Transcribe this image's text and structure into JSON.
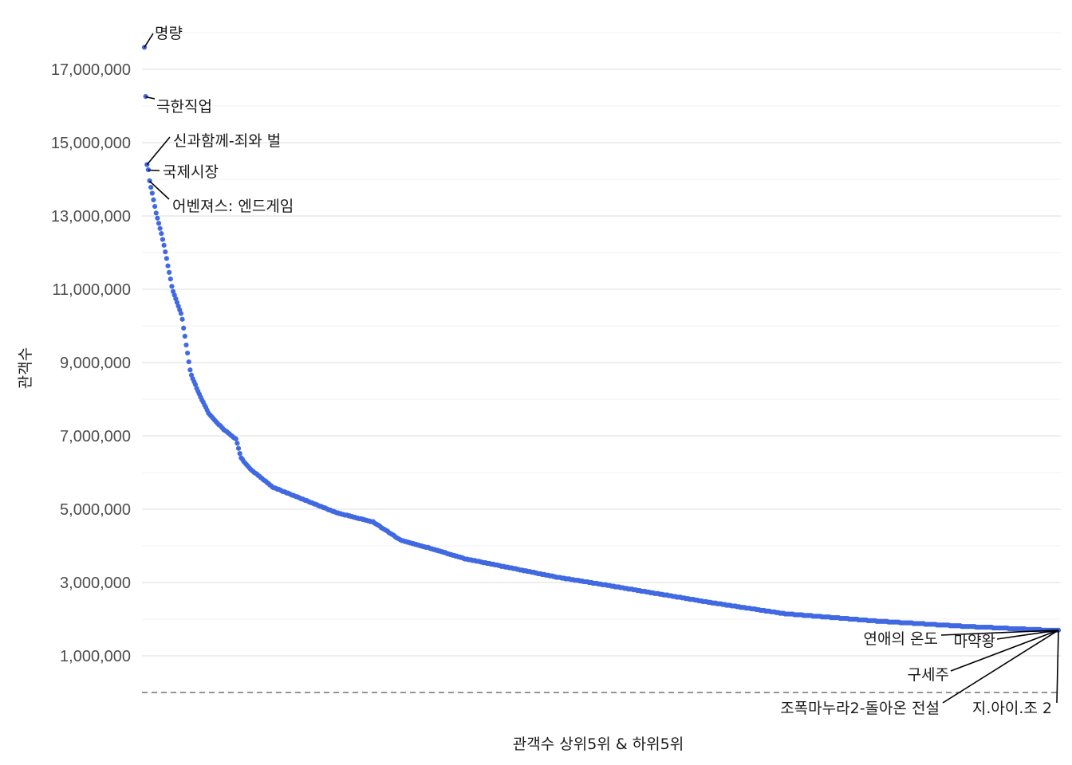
{
  "chart_data": {
    "type": "scatter",
    "title": "",
    "xlabel": "관객수 상위5위 & 하위5위",
    "ylabel": "관객수",
    "ylim": [
      0,
      18000000
    ],
    "y_ticks": [
      1000000,
      3000000,
      5000000,
      7000000,
      9000000,
      11000000,
      13000000,
      15000000,
      17000000
    ],
    "y_tick_labels": [
      "1,000,000",
      "3,000,000",
      "5,000,000",
      "7,000,000",
      "9,000,000",
      "11,000,000",
      "13,000,000",
      "15,000,000",
      "17,000,000"
    ],
    "x_count": 700,
    "grid": true,
    "point_color": "#4169E1",
    "reference_line": {
      "y": 0,
      "style": "dashed"
    },
    "curve_anchors": [
      [
        1,
        17600000
      ],
      [
        2,
        16250000
      ],
      [
        3,
        14400000
      ],
      [
        4,
        14250000
      ],
      [
        5,
        13950000
      ],
      [
        8,
        13600000
      ],
      [
        12,
        13100000
      ],
      [
        20,
        12300000
      ],
      [
        30,
        11000000
      ],
      [
        40,
        10300000
      ],
      [
        50,
        8700000
      ],
      [
        60,
        8100000
      ],
      [
        70,
        7600000
      ],
      [
        85,
        7200000
      ],
      [
        100,
        6900000
      ],
      [
        105,
        6400000
      ],
      [
        115,
        6100000
      ],
      [
        140,
        5600000
      ],
      [
        170,
        5300000
      ],
      [
        210,
        4900000
      ],
      [
        250,
        4650000
      ],
      [
        265,
        4400000
      ],
      [
        280,
        4150000
      ],
      [
        310,
        3950000
      ],
      [
        350,
        3650000
      ],
      [
        400,
        3400000
      ],
      [
        450,
        3150000
      ],
      [
        500,
        2950000
      ],
      [
        560,
        2700000
      ],
      [
        620,
        2450000
      ],
      [
        700,
        2150000
      ],
      [
        800,
        1950000
      ],
      [
        900,
        1800000
      ],
      [
        990,
        1700000
      ]
    ],
    "annotations": [
      {
        "label": "명량",
        "rank": 1,
        "value": 17600000
      },
      {
        "label": "극한직업",
        "rank": 2,
        "value": 16250000
      },
      {
        "label": "신과함께-죄와 벌",
        "rank": 3,
        "value": 14400000
      },
      {
        "label": "국제시장",
        "rank": 4,
        "value": 14250000
      },
      {
        "label": "어벤져스: 엔드게임",
        "rank": 5,
        "value": 13950000
      },
      {
        "label": "연애의 온도",
        "rank": 996,
        "value": 1700000
      },
      {
        "label": "마약왕",
        "rank": 997,
        "value": 1700000
      },
      {
        "label": "구세주",
        "rank": 998,
        "value": 1700000
      },
      {
        "label": "조폭마누라2-돌아온 전설",
        "rank": 999,
        "value": 1700000
      },
      {
        "label": "지.아이.조 2",
        "rank": 1000,
        "value": 1700000
      }
    ]
  }
}
